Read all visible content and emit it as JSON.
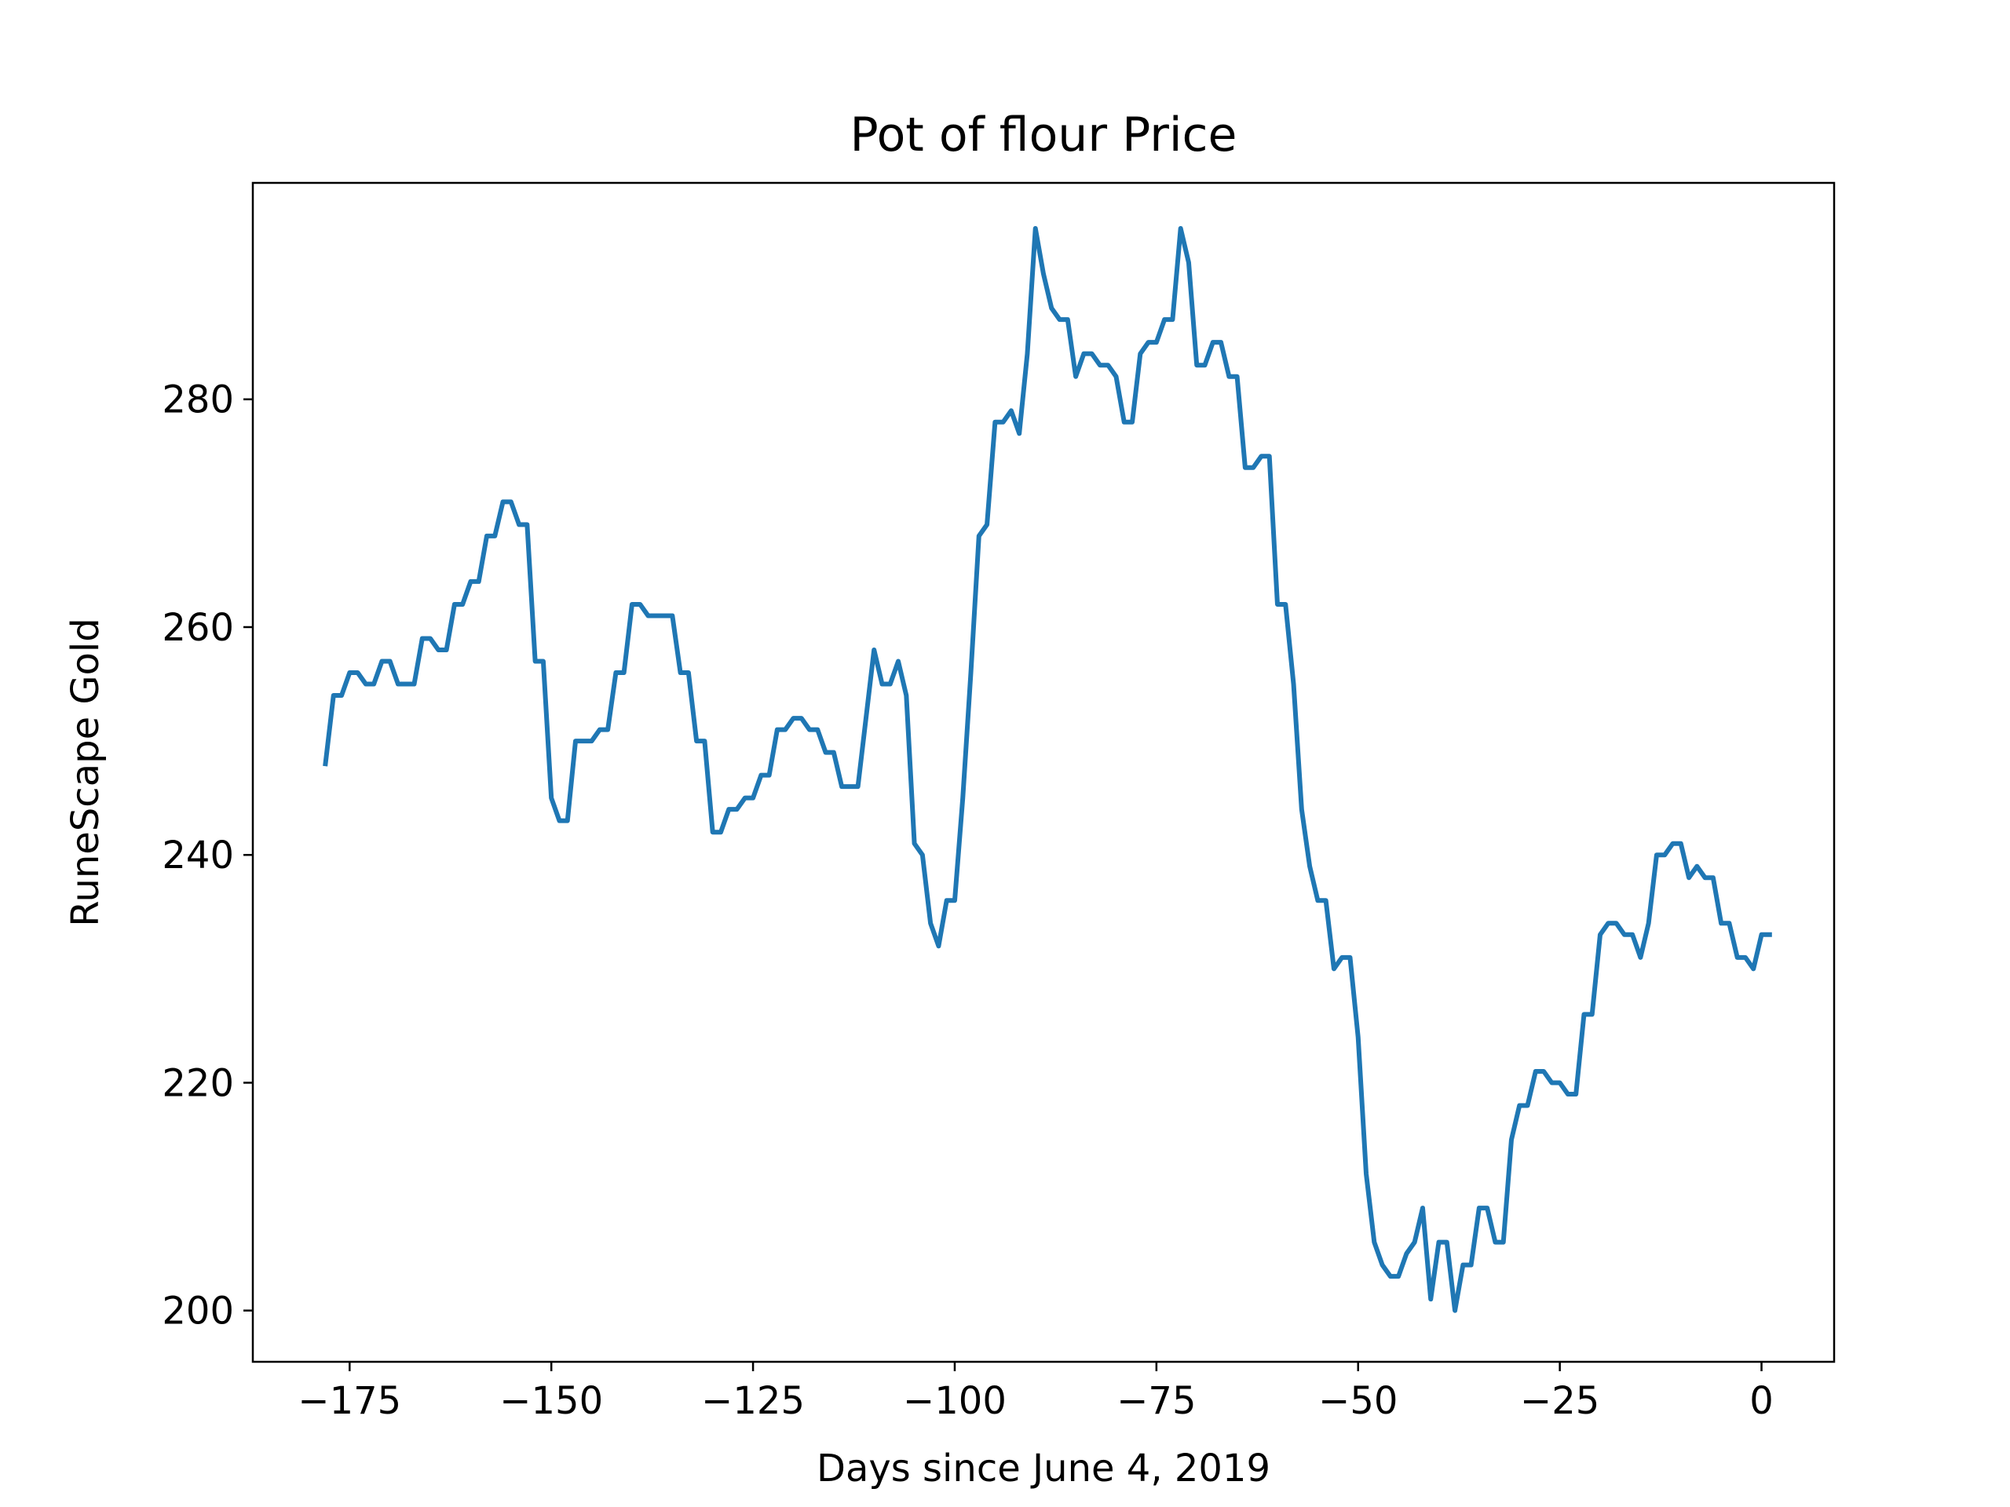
{
  "chart_data": {
    "type": "line",
    "title": "Pot of flour Price",
    "xlabel": "Days since June 4, 2019",
    "ylabel": "RuneScape Gold",
    "xlim": [
      -187,
      9
    ],
    "ylim": [
      195.5,
      299
    ],
    "xticks": [
      -175,
      -150,
      -125,
      -100,
      -75,
      -50,
      -25,
      0
    ],
    "xtick_labels": [
      "−175",
      "−150",
      "−125",
      "−100",
      "−75",
      "−50",
      "−25",
      "0"
    ],
    "yticks": [
      200,
      220,
      240,
      260,
      280
    ],
    "ytick_labels": [
      "200",
      "220",
      "240",
      "260",
      "280"
    ],
    "grid": false,
    "series": [
      {
        "color": "#1f77b4",
        "points": [
          [
            -178,
            248
          ],
          [
            -177,
            254
          ],
          [
            -176,
            254
          ],
          [
            -175,
            256
          ],
          [
            -174,
            256
          ],
          [
            -173,
            255
          ],
          [
            -172,
            255
          ],
          [
            -171,
            257
          ],
          [
            -170,
            257
          ],
          [
            -169,
            255
          ],
          [
            -168,
            255
          ],
          [
            -167,
            255
          ],
          [
            -166,
            259
          ],
          [
            -165,
            259
          ],
          [
            -164,
            258
          ],
          [
            -163,
            258
          ],
          [
            -162,
            262
          ],
          [
            -161,
            262
          ],
          [
            -160,
            264
          ],
          [
            -159,
            264
          ],
          [
            -158,
            268
          ],
          [
            -157,
            268
          ],
          [
            -156,
            271
          ],
          [
            -155,
            271
          ],
          [
            -154,
            269
          ],
          [
            -153,
            269
          ],
          [
            -152,
            257
          ],
          [
            -151,
            257
          ],
          [
            -150,
            245
          ],
          [
            -149,
            243
          ],
          [
            -148,
            243
          ],
          [
            -147,
            250
          ],
          [
            -146,
            250
          ],
          [
            -145,
            250
          ],
          [
            -144,
            251
          ],
          [
            -143,
            251
          ],
          [
            -142,
            256
          ],
          [
            -141,
            256
          ],
          [
            -140,
            262
          ],
          [
            -139,
            262
          ],
          [
            -138,
            261
          ],
          [
            -137,
            261
          ],
          [
            -136,
            261
          ],
          [
            -135,
            261
          ],
          [
            -134,
            256
          ],
          [
            -133,
            256
          ],
          [
            -132,
            250
          ],
          [
            -131,
            250
          ],
          [
            -130,
            242
          ],
          [
            -129,
            242
          ],
          [
            -128,
            244
          ],
          [
            -127,
            244
          ],
          [
            -126,
            245
          ],
          [
            -125,
            245
          ],
          [
            -124,
            247
          ],
          [
            -123,
            247
          ],
          [
            -122,
            251
          ],
          [
            -121,
            251
          ],
          [
            -120,
            252
          ],
          [
            -119,
            252
          ],
          [
            -118,
            251
          ],
          [
            -117,
            251
          ],
          [
            -116,
            249
          ],
          [
            -115,
            249
          ],
          [
            -114,
            246
          ],
          [
            -113,
            246
          ],
          [
            -112,
            246
          ],
          [
            -111,
            252
          ],
          [
            -110,
            258
          ],
          [
            -109,
            255
          ],
          [
            -108,
            255
          ],
          [
            -107,
            257
          ],
          [
            -106,
            254
          ],
          [
            -105,
            241
          ],
          [
            -104,
            240
          ],
          [
            -103,
            234
          ],
          [
            -102,
            232
          ],
          [
            -101,
            236
          ],
          [
            -100,
            236
          ],
          [
            -99,
            245
          ],
          [
            -98,
            256
          ],
          [
            -97,
            268
          ],
          [
            -96,
            269
          ],
          [
            -95,
            278
          ],
          [
            -94,
            278
          ],
          [
            -93,
            279
          ],
          [
            -92,
            277
          ],
          [
            -91,
            284
          ],
          [
            -90,
            295
          ],
          [
            -89,
            291
          ],
          [
            -88,
            288
          ],
          [
            -87,
            287
          ],
          [
            -86,
            287
          ],
          [
            -85,
            282
          ],
          [
            -84,
            284
          ],
          [
            -83,
            284
          ],
          [
            -82,
            283
          ],
          [
            -81,
            283
          ],
          [
            -80,
            282
          ],
          [
            -79,
            278
          ],
          [
            -78,
            278
          ],
          [
            -77,
            284
          ],
          [
            -76,
            285
          ],
          [
            -75,
            285
          ],
          [
            -74,
            287
          ],
          [
            -73,
            287
          ],
          [
            -72,
            295
          ],
          [
            -71,
            292
          ],
          [
            -70,
            283
          ],
          [
            -69,
            283
          ],
          [
            -68,
            285
          ],
          [
            -67,
            285
          ],
          [
            -66,
            282
          ],
          [
            -65,
            282
          ],
          [
            -64,
            274
          ],
          [
            -63,
            274
          ],
          [
            -62,
            275
          ],
          [
            -61,
            275
          ],
          [
            -60,
            262
          ],
          [
            -59,
            262
          ],
          [
            -58,
            255
          ],
          [
            -57,
            244
          ],
          [
            -56,
            239
          ],
          [
            -55,
            236
          ],
          [
            -54,
            236
          ],
          [
            -53,
            230
          ],
          [
            -52,
            231
          ],
          [
            -51,
            231
          ],
          [
            -50,
            224
          ],
          [
            -49,
            212
          ],
          [
            -48,
            206
          ],
          [
            -47,
            204
          ],
          [
            -46,
            203
          ],
          [
            -45,
            203
          ],
          [
            -44,
            205
          ],
          [
            -43,
            206
          ],
          [
            -42,
            209
          ],
          [
            -41,
            201
          ],
          [
            -40,
            206
          ],
          [
            -39,
            206
          ],
          [
            -38,
            200
          ],
          [
            -37,
            204
          ],
          [
            -36,
            204
          ],
          [
            -35,
            209
          ],
          [
            -34,
            209
          ],
          [
            -33,
            206
          ],
          [
            -32,
            206
          ],
          [
            -31,
            215
          ],
          [
            -30,
            218
          ],
          [
            -29,
            218
          ],
          [
            -28,
            221
          ],
          [
            -27,
            221
          ],
          [
            -26,
            220
          ],
          [
            -25,
            220
          ],
          [
            -24,
            219
          ],
          [
            -23,
            219
          ],
          [
            -22,
            226
          ],
          [
            -21,
            226
          ],
          [
            -20,
            233
          ],
          [
            -19,
            234
          ],
          [
            -18,
            234
          ],
          [
            -17,
            233
          ],
          [
            -16,
            233
          ],
          [
            -15,
            231
          ],
          [
            -14,
            234
          ],
          [
            -13,
            240
          ],
          [
            -12,
            240
          ],
          [
            -11,
            241
          ],
          [
            -10,
            241
          ],
          [
            -9,
            238
          ],
          [
            -8,
            239
          ],
          [
            -7,
            238
          ],
          [
            -6,
            238
          ],
          [
            -5,
            234
          ],
          [
            -4,
            234
          ],
          [
            -3,
            231
          ],
          [
            -2,
            231
          ],
          [
            -1,
            230
          ],
          [
            0,
            233
          ],
          [
            1,
            233
          ]
        ]
      }
    ]
  }
}
